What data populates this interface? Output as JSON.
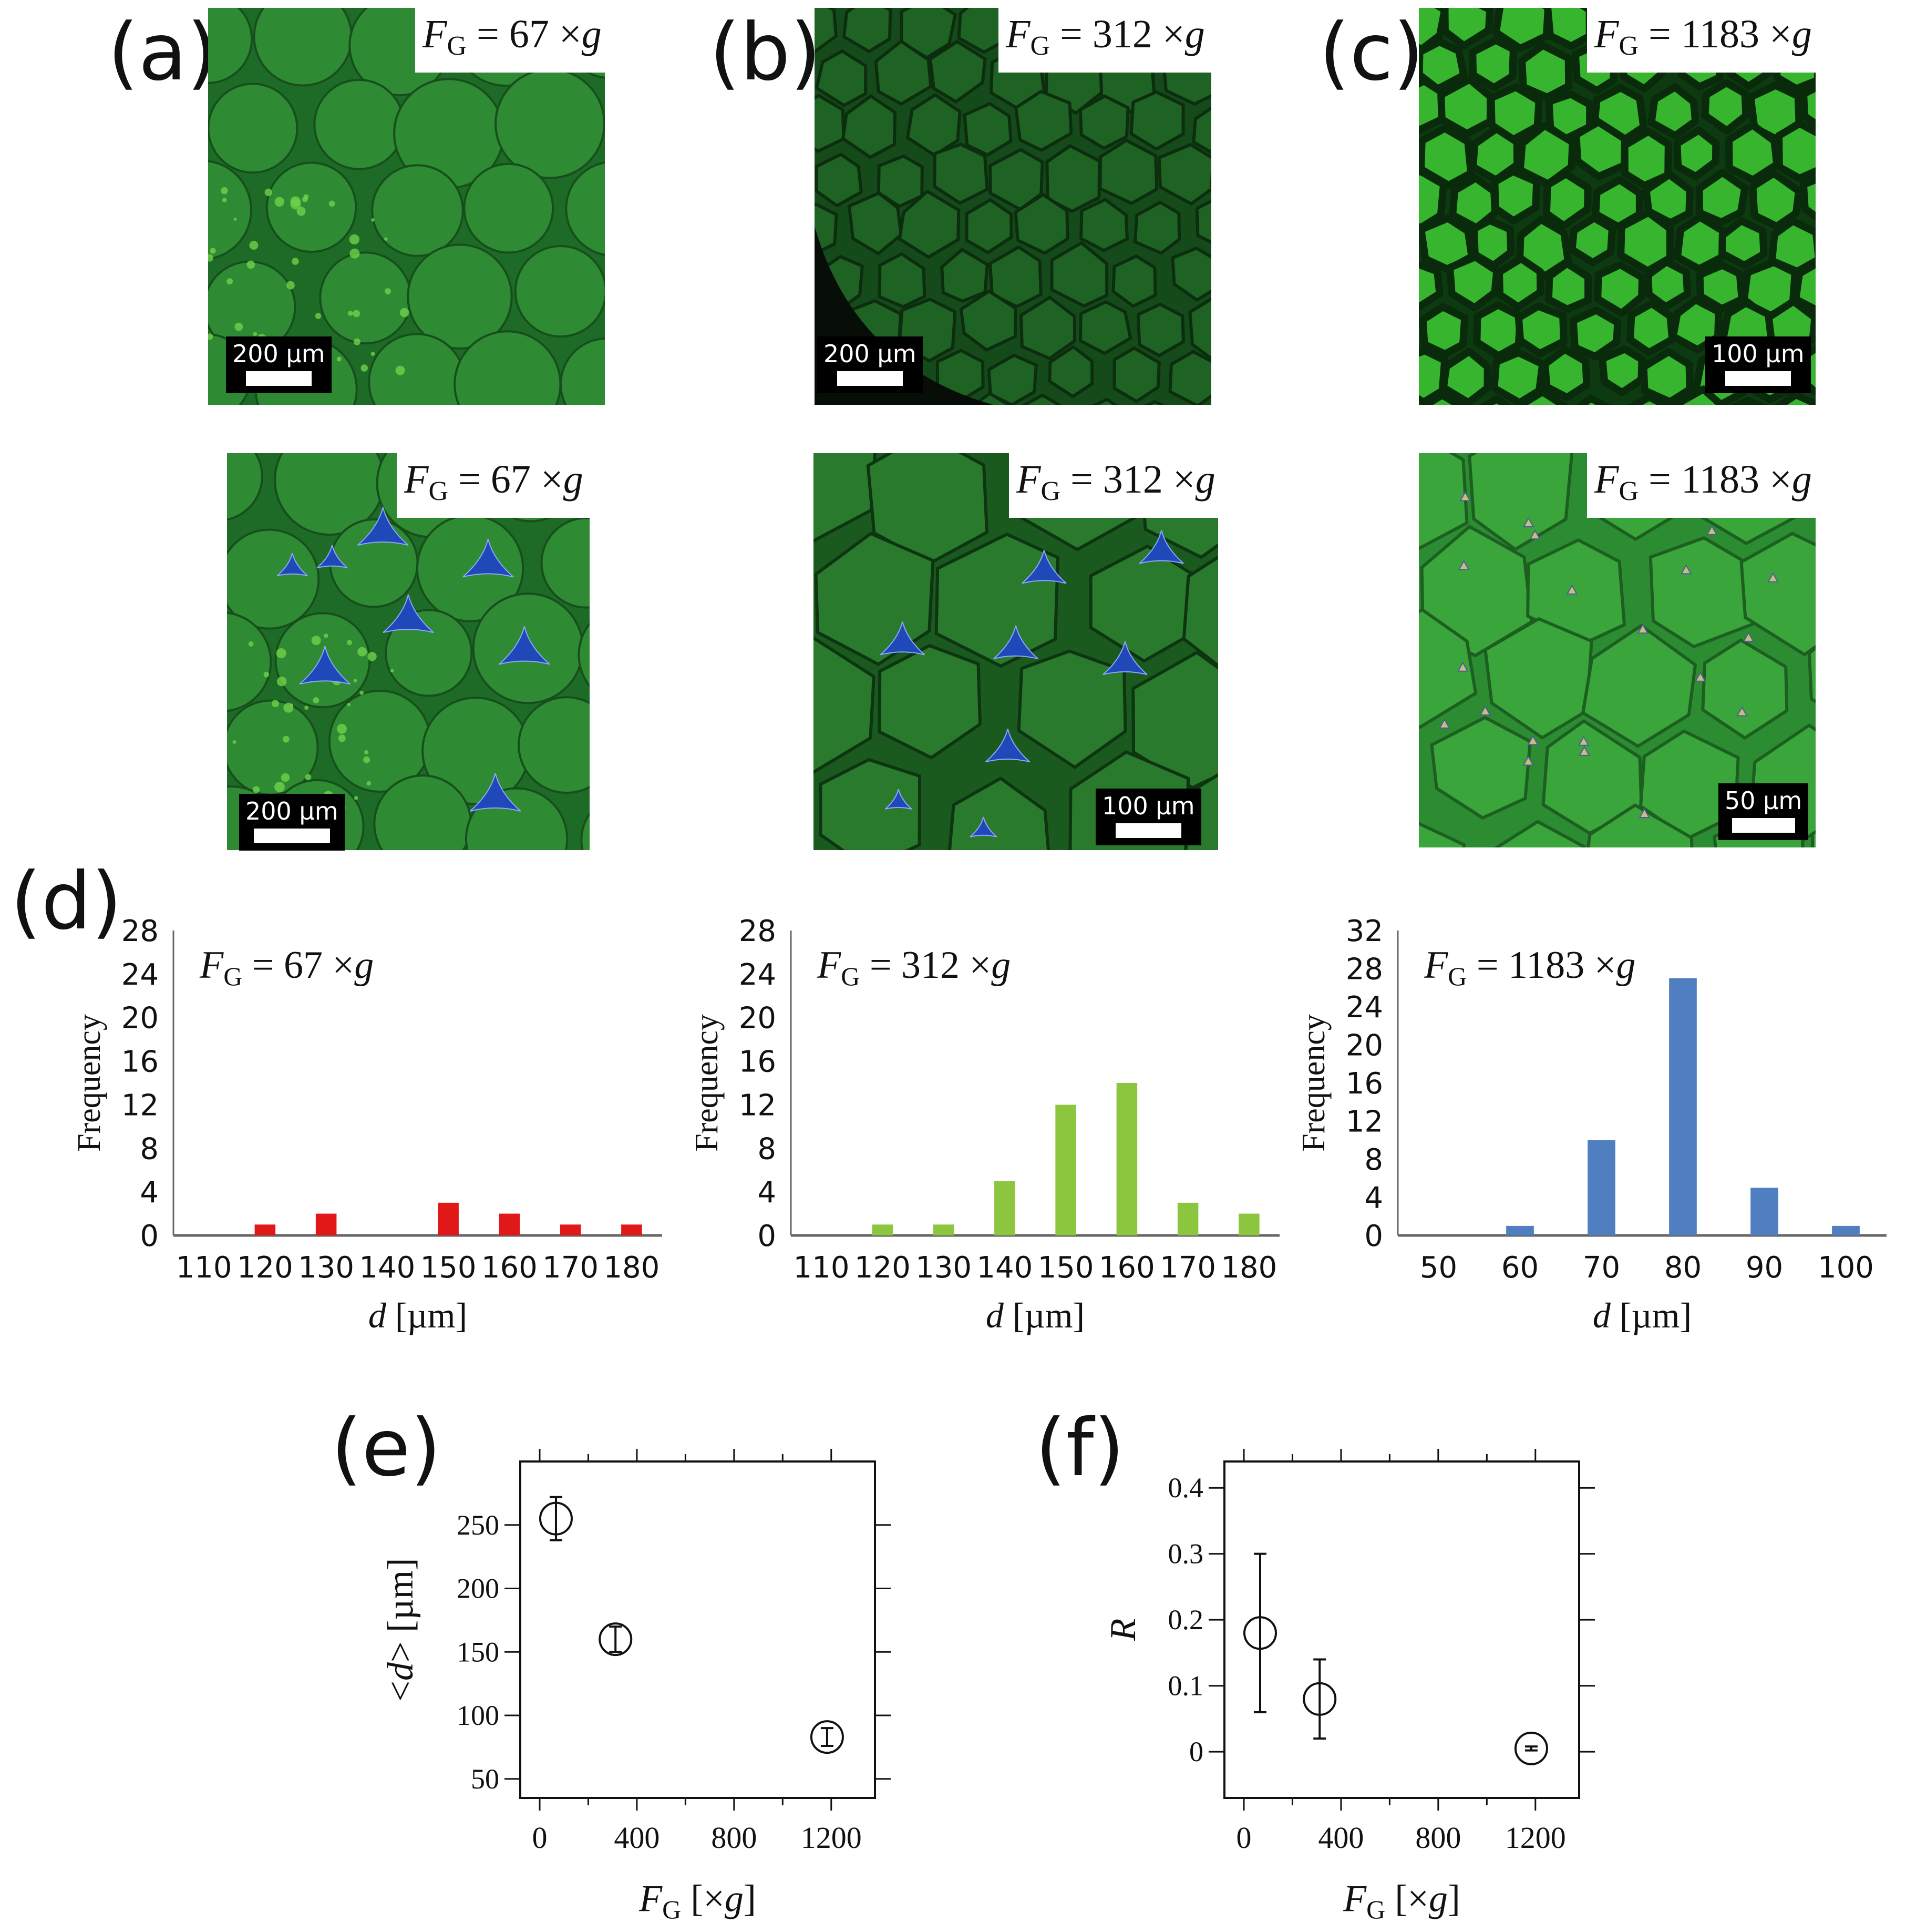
{
  "panels": {
    "a": "(a)",
    "b": "(b)",
    "c": "(c)",
    "d": "(d)",
    "e": "(e)",
    "f": "(f)"
  },
  "micrographs": [
    {
      "id": "a-top",
      "label_pre": "F",
      "label_sub": "G",
      "label_post": " = 67 ×",
      "label_g": "g",
      "scale": "200 µm",
      "tone": "dim"
    },
    {
      "id": "b-top",
      "label_pre": "F",
      "label_sub": "G",
      "label_post": " = 312 ×",
      "label_g": "g",
      "scale": "200 µm",
      "tone": "dark"
    },
    {
      "id": "c-top",
      "label_pre": "F",
      "label_sub": "G",
      "label_post": " = 1183 ×",
      "label_g": "g",
      "scale": "100 µm",
      "tone": "bright"
    },
    {
      "id": "a-bottom",
      "label_pre": "F",
      "label_sub": "G",
      "label_post": " = 67 ×",
      "label_g": "g",
      "scale": "200 µm",
      "tone": "dim"
    },
    {
      "id": "b-bottom",
      "label_pre": "F",
      "label_sub": "G",
      "label_post": " = 312 ×",
      "label_g": "g",
      "scale": "100 µm",
      "tone": "mid"
    },
    {
      "id": "c-bottom",
      "label_pre": "F",
      "label_sub": "G",
      "label_post": " = 1183 ×",
      "label_g": "g",
      "scale": "50 µm",
      "tone": "light"
    }
  ],
  "colors": {
    "green_dark": "#1f5a1f",
    "green_mid": "#2e7d32",
    "green_bright": "#3fae3a",
    "blue_region": "#1f48b8",
    "bar_red": "#e01818",
    "bar_green": "#8cc63f",
    "bar_blue": "#4f7fc0"
  },
  "chart_data": [
    {
      "type": "bar",
      "id": "hist-67",
      "annotation": "F_G = 67 ×g",
      "xlabel": "d [µm]",
      "ylabel": "Frequency",
      "categories": [
        "110",
        "120",
        "130",
        "140",
        "150",
        "160",
        "170",
        "180"
      ],
      "values": [
        0,
        1,
        2,
        0,
        3,
        2,
        1,
        1
      ],
      "yticks": [
        0,
        4,
        8,
        12,
        16,
        20,
        24,
        28
      ],
      "ylim": [
        0,
        28
      ],
      "color": "#e01818"
    },
    {
      "type": "bar",
      "id": "hist-312",
      "annotation": "F_G = 312 ×g",
      "xlabel": "d [µm]",
      "ylabel": "Frequency",
      "categories": [
        "110",
        "120",
        "130",
        "140",
        "150",
        "160",
        "170",
        "180"
      ],
      "values": [
        0,
        1,
        1,
        5,
        12,
        14,
        3,
        2
      ],
      "yticks": [
        0,
        4,
        8,
        12,
        16,
        20,
        24,
        28
      ],
      "ylim": [
        0,
        28
      ],
      "color": "#8cc63f"
    },
    {
      "type": "bar",
      "id": "hist-1183",
      "annotation": "F_G = 1183 ×g",
      "xlabel": "d [µm]",
      "ylabel": "Frequency",
      "categories": [
        "50",
        "60",
        "70",
        "80",
        "90",
        "100"
      ],
      "values": [
        0,
        1,
        10,
        27,
        5,
        1
      ],
      "yticks": [
        0,
        4,
        8,
        12,
        16,
        20,
        24,
        28,
        32
      ],
      "ylim": [
        0,
        32
      ],
      "color": "#4f7fc0"
    },
    {
      "type": "scatter",
      "id": "mean-d",
      "xlabel": "F_G [×g]",
      "ylabel": "<d> [µm]",
      "xticks": [
        0,
        400,
        800,
        1200
      ],
      "xlim": [
        -80,
        1380
      ],
      "yticks": [
        50,
        100,
        150,
        200,
        250
      ],
      "ylim": [
        35,
        300
      ],
      "points": [
        {
          "x": 67,
          "y": 255,
          "err": 17
        },
        {
          "x": 312,
          "y": 160,
          "err": 10
        },
        {
          "x": 1183,
          "y": 83,
          "err": 7
        }
      ]
    },
    {
      "type": "scatter",
      "id": "ratio-r",
      "xlabel": "F_G [×g]",
      "ylabel": "R",
      "xticks": [
        0,
        400,
        800,
        1200
      ],
      "xlim": [
        -80,
        1380
      ],
      "yticks": [
        0,
        0.1,
        0.2,
        0.3,
        0.4
      ],
      "ylim": [
        -0.07,
        0.44
      ],
      "points": [
        {
          "x": 67,
          "y": 0.18,
          "err": 0.12
        },
        {
          "x": 312,
          "y": 0.08,
          "err": 0.06
        },
        {
          "x": 1183,
          "y": 0.005,
          "err": 0.003
        }
      ]
    }
  ]
}
